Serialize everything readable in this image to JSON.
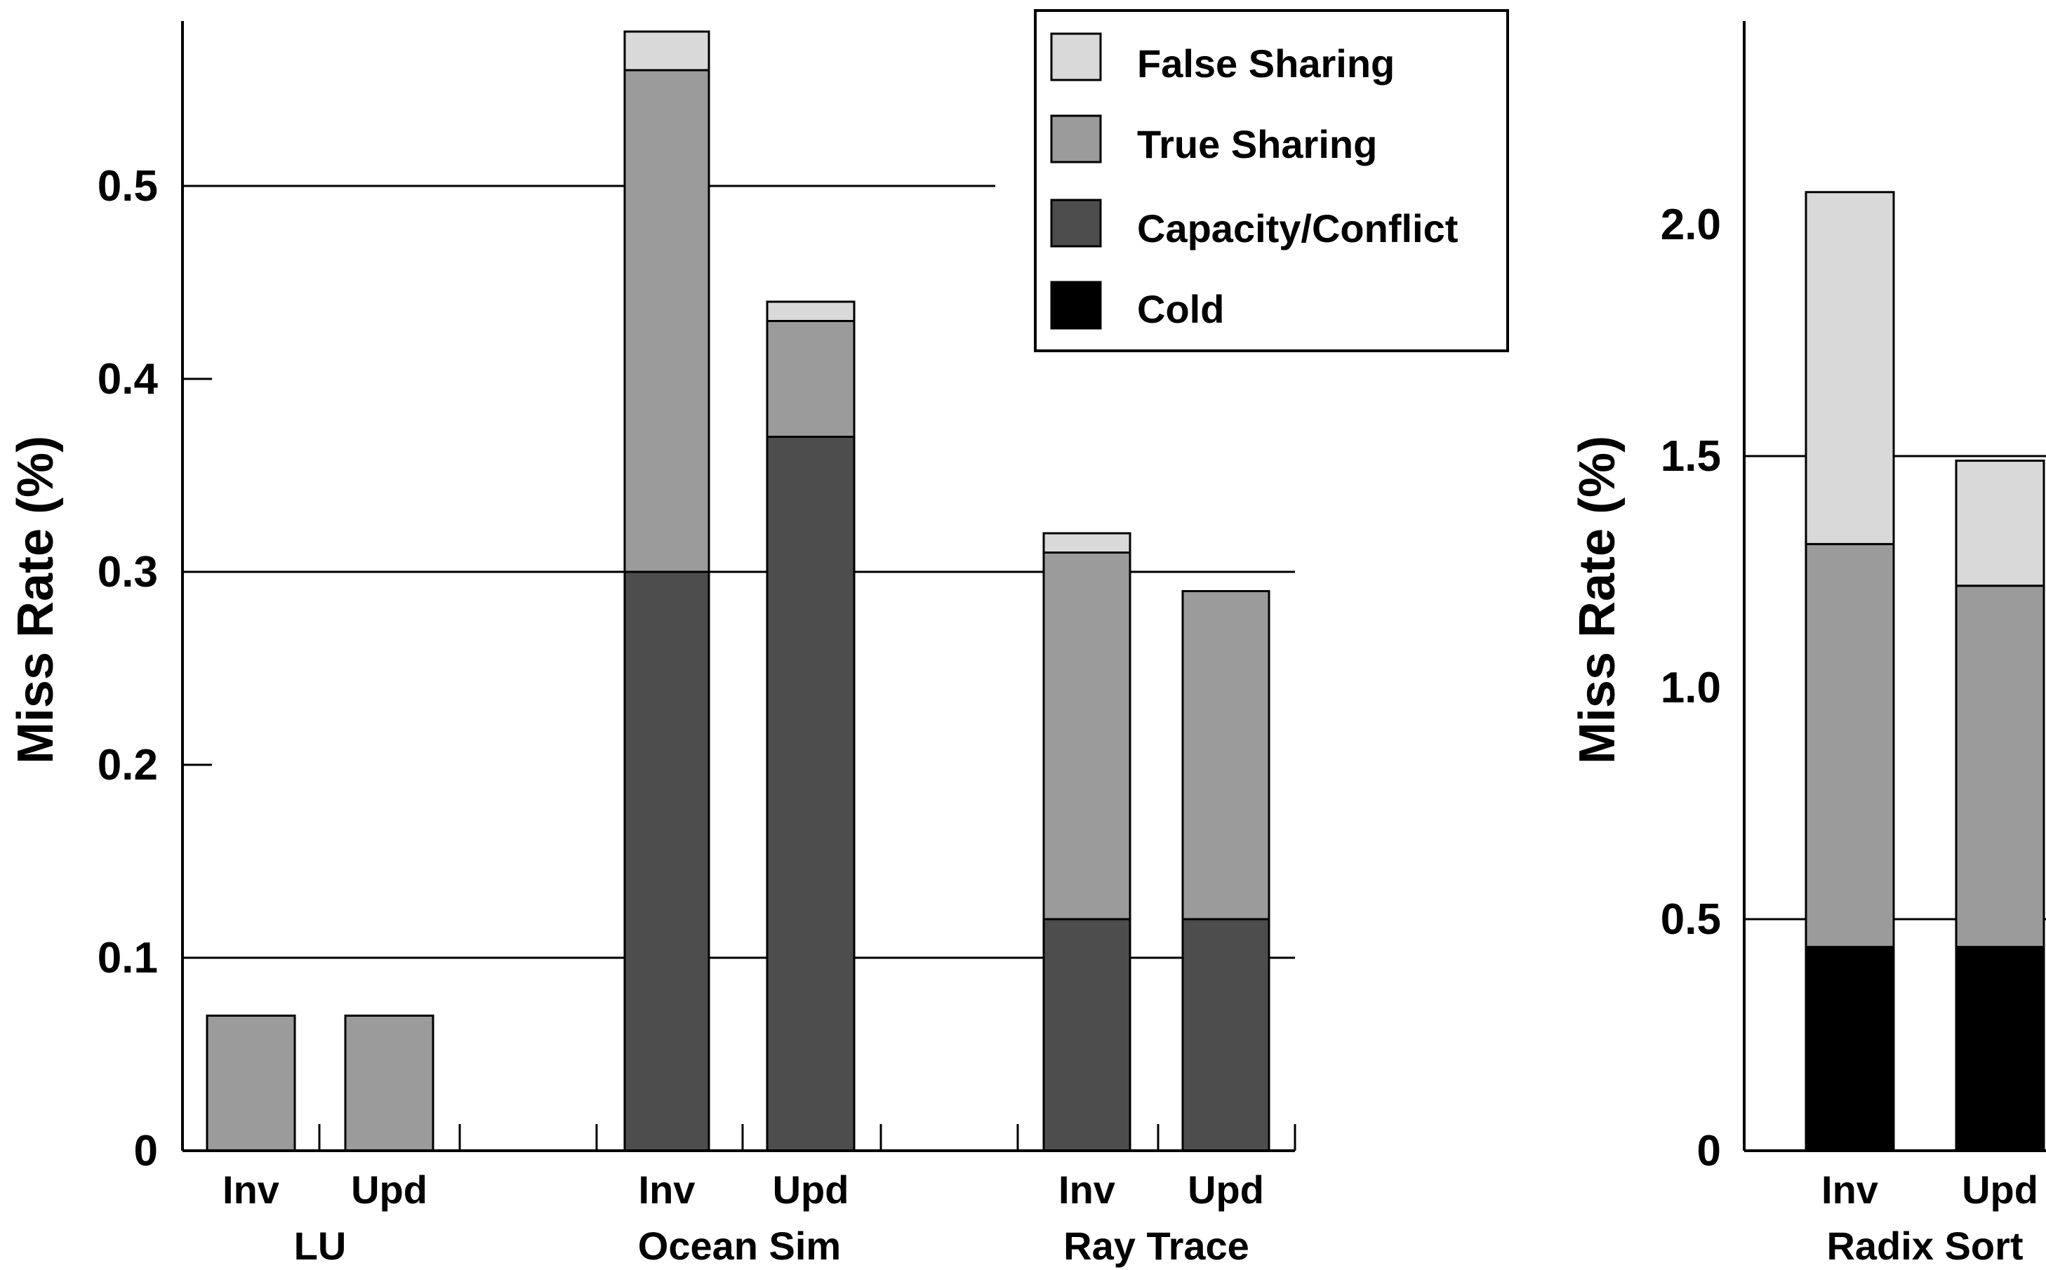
{
  "chart_data": [
    {
      "type": "bar",
      "stacked": true,
      "ylabel": "Miss Rate (%)",
      "ylim": [
        0,
        0.58
      ],
      "yticks": [
        "0",
        "0.1",
        "0.2",
        "0.3",
        "0.4",
        "0.5"
      ],
      "grid_lines_at": [
        0.1,
        0.3,
        0.5
      ],
      "groups": [
        {
          "label": "LU",
          "bars": [
            {
              "label": "Inv",
              "stack": {
                "Cold": 0,
                "Capacity/Conflict": 0,
                "True Sharing": 0.07,
                "False Sharing": 0
              }
            },
            {
              "label": "Upd",
              "stack": {
                "Cold": 0,
                "Capacity/Conflict": 0,
                "True Sharing": 0.07,
                "False Sharing": 0
              }
            }
          ]
        },
        {
          "label": "Ocean Sim",
          "bars": [
            {
              "label": "Inv",
              "stack": {
                "Cold": 0,
                "Capacity/Conflict": 0.3,
                "True Sharing": 0.26,
                "False Sharing": 0.02
              }
            },
            {
              "label": "Upd",
              "stack": {
                "Cold": 0,
                "Capacity/Conflict": 0.37,
                "True Sharing": 0.06,
                "False Sharing": 0.01
              }
            }
          ]
        },
        {
          "label": "Ray Trace",
          "bars": [
            {
              "label": "Inv",
              "stack": {
                "Cold": 0,
                "Capacity/Conflict": 0.12,
                "True Sharing": 0.19,
                "False Sharing": 0.01
              }
            },
            {
              "label": "Upd",
              "stack": {
                "Cold": 0,
                "Capacity/Conflict": 0.12,
                "True Sharing": 0.17,
                "False Sharing": 0
              }
            }
          ]
        }
      ]
    },
    {
      "type": "bar",
      "stacked": true,
      "ylabel": "Miss Rate (%)",
      "ylim": [
        0,
        2.5
      ],
      "yticks": [
        "0",
        "0.5",
        "1.0",
        "1.5",
        "2.0"
      ],
      "grid_lines_at": [
        0.5,
        1.5
      ],
      "groups": [
        {
          "label": "Radix Sort",
          "bars": [
            {
              "label": "Inv",
              "stack": {
                "Cold": 0.44,
                "Capacity/Conflict": 0,
                "True Sharing": 0.87,
                "False Sharing": 0.76
              }
            },
            {
              "label": "Upd",
              "stack": {
                "Cold": 0.44,
                "Capacity/Conflict": 0,
                "True Sharing": 0.78,
                "False Sharing": 0.27
              }
            }
          ]
        }
      ]
    }
  ],
  "legend": {
    "placement": "top-center",
    "entries": [
      {
        "label": "False Sharing",
        "color": "#d9d9d9"
      },
      {
        "label": "True Sharing",
        "color": "#9b9b9b"
      },
      {
        "label": "Capacity/Conflict",
        "color": "#4d4d4d"
      },
      {
        "label": "Cold",
        "color": "#000000"
      }
    ]
  },
  "stack_order": [
    "Cold",
    "Capacity/Conflict",
    "True Sharing",
    "False Sharing"
  ]
}
